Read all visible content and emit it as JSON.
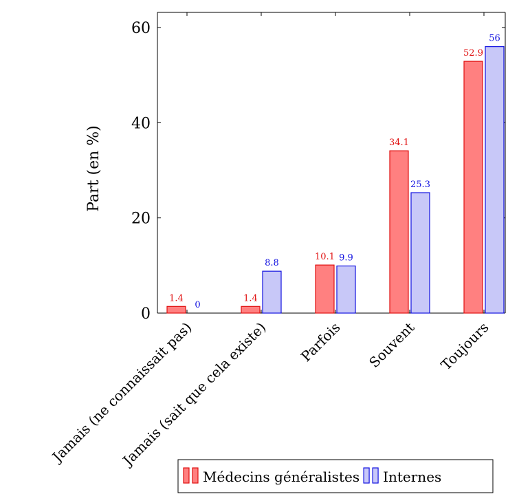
{
  "chart_data": {
    "type": "bar",
    "categories": [
      "Jamais (ne connaissait pas)",
      "Jamais (sait que cela existe)",
      "Parfois",
      "Souvent",
      "Toujours"
    ],
    "series": [
      {
        "name": "Médecins généralistes",
        "values": [
          1.4,
          1.4,
          10.1,
          34.1,
          52.9
        ],
        "labels": [
          "1.4",
          "1.4",
          "10.1",
          "34.1",
          "52.9"
        ],
        "fill": "#ff8080",
        "stroke": "#e01010",
        "label_color": "#e01010"
      },
      {
        "name": "Internes",
        "values": [
          0,
          8.8,
          9.9,
          25.3,
          56
        ],
        "labels": [
          "0",
          "8.8",
          "9.9",
          "25.3",
          "56"
        ],
        "fill": "#c8c8f8",
        "stroke": "#1010e0",
        "label_color": "#1010e0"
      }
    ],
    "ylabel": "Part (en %)",
    "xlabel": "",
    "ylim": [
      0,
      60
    ],
    "yticks": [
      0,
      20,
      40,
      60
    ],
    "grid": false,
    "legend_position": "bottom-right"
  }
}
